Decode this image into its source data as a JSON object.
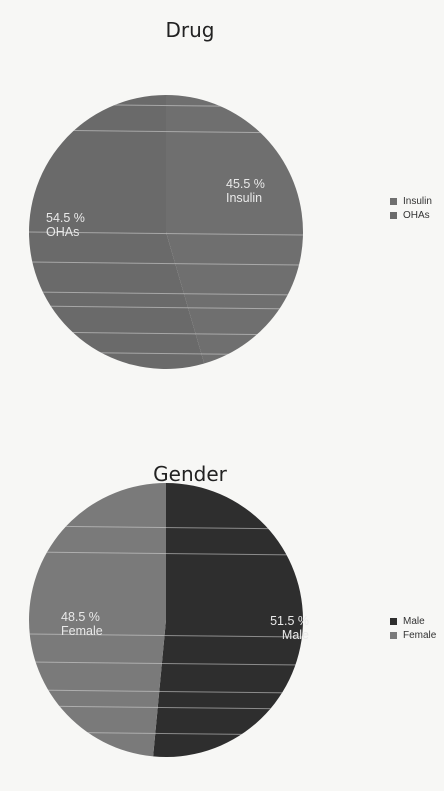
{
  "chart_data": [
    {
      "type": "pie",
      "title": "Drug",
      "slices": [
        {
          "label": "Insulin",
          "value": 45.5,
          "value_text": "45.5 %",
          "color": "#6f6f6f"
        },
        {
          "label": "OHAs",
          "value": 54.5,
          "value_text": "54.5 %",
          "color": "#6a6a6a"
        }
      ],
      "legend": {
        "position": "right",
        "items": [
          "Insulin",
          "OHAs"
        ]
      }
    },
    {
      "type": "pie",
      "title": "Gender",
      "slices": [
        {
          "label": "Male",
          "value": 51.5,
          "value_text": "51.5 %",
          "color": "#2e2e2e"
        },
        {
          "label": "Female",
          "value": 48.5,
          "value_text": "48.5 %",
          "color": "#7a7a7a"
        }
      ],
      "legend": {
        "position": "right",
        "items": [
          "Male",
          "Female"
        ]
      }
    }
  ]
}
